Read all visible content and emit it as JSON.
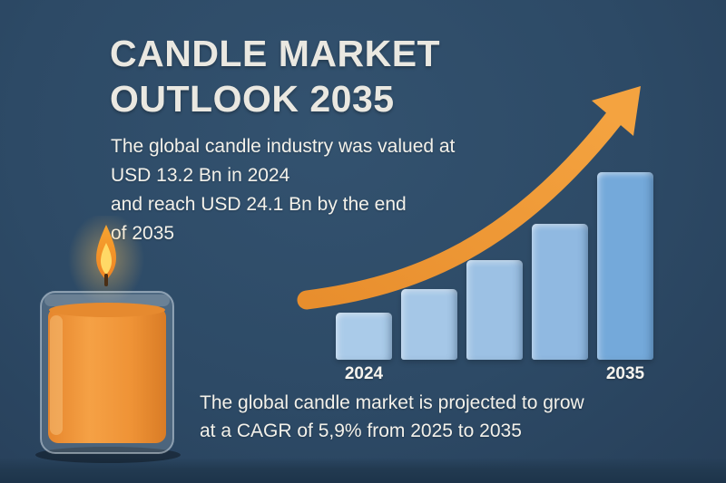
{
  "colors": {
    "background": "#2d4a66",
    "floor": "#1d344a",
    "title_text": "#eae8e1",
    "body_text": "#f3f1ea",
    "arrow_orange": "#ef9738",
    "candle_wax": "#f0953a",
    "flame_yellow": "#ffd966"
  },
  "title": {
    "line1": "CANDLE MARKET",
    "line2": "OUTLOOK 2035"
  },
  "intro": {
    "lines": [
      "The global candle industry was valued at",
      "USD 13.2 Bn in 2024",
      "and reach USD 24.1 Bn by the end",
      "of 2035"
    ]
  },
  "footer": {
    "lines": [
      "The global candle market is projected to grow",
      "at a CAGR of 5,9% from 2025 to 2035"
    ]
  },
  "chart_data": {
    "type": "bar",
    "categories": [
      "2024",
      "",
      "",
      "",
      "2035"
    ],
    "values": [
      52,
      78,
      110,
      150,
      207
    ],
    "values_note": "stylized relative bar heights (px); only first and last bars are labeled on the axis",
    "endpoint_values": {
      "2024": "USD 13.2 Bn",
      "2035": "USD 24.1 Bn"
    },
    "bar_colors": [
      "#aacbe9",
      "#a5c7e7",
      "#9cc1e4",
      "#90b9e1",
      "#74a9da"
    ],
    "title": "",
    "xlabel": "",
    "ylabel": "",
    "gridlines": false,
    "legend": "none",
    "annotations": [
      "upward curved orange growth arrow over bars"
    ]
  },
  "illustration": {
    "description": "burning orange candle in a glass jar"
  }
}
